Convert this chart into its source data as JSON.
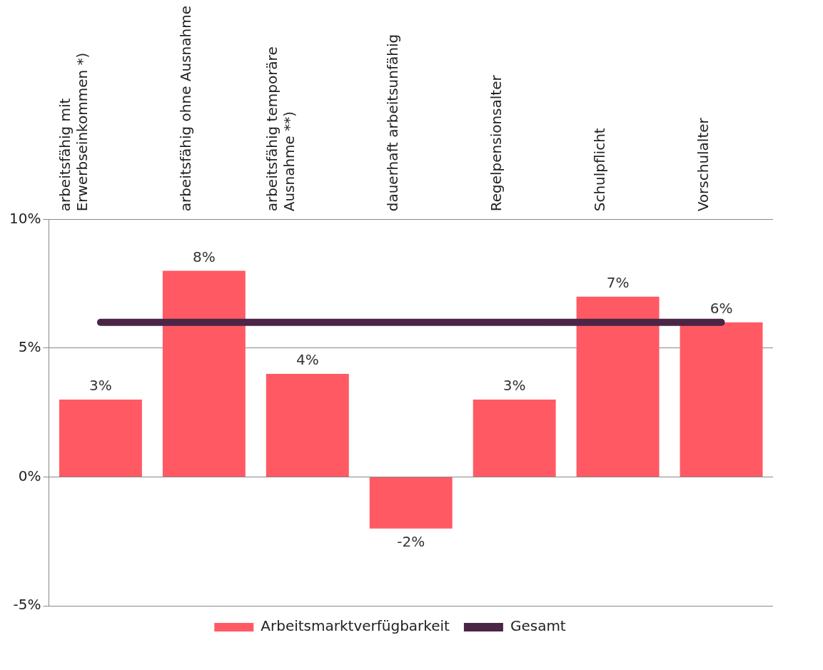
{
  "chart_data": {
    "type": "bar",
    "categories": [
      "arbeitsfähig mit Erwerbseinkommen *)",
      "arbeitsfähig ohne Ausnahme",
      "arbeitsfähig temporäre Ausnahme **)",
      "dauerhaft arbeitsunfähig",
      "Regelpensionsalter",
      "Schulpflicht",
      "Vorschulalter"
    ],
    "series": [
      {
        "name": "Arbeitsmarktverfügbarkeit",
        "color": "#ff5a64",
        "values": [
          3,
          8,
          4,
          -2,
          3,
          7,
          6
        ],
        "value_labels": [
          "3%",
          "8%",
          "4%",
          "-2%",
          "3%",
          "7%",
          "6%"
        ]
      },
      {
        "name": "Gesamt",
        "type": "line",
        "color": "#4a2545",
        "values": [
          6,
          6,
          6,
          6,
          6,
          6,
          6
        ]
      }
    ],
    "ylim": [
      -5,
      10
    ],
    "yticks": [
      {
        "value": -5,
        "label": "-5%"
      },
      {
        "value": 0,
        "label": "0%"
      },
      {
        "value": 5,
        "label": "5%"
      },
      {
        "value": 10,
        "label": "10%"
      }
    ],
    "grid": "y",
    "legend": "bottom",
    "marker": "none"
  }
}
